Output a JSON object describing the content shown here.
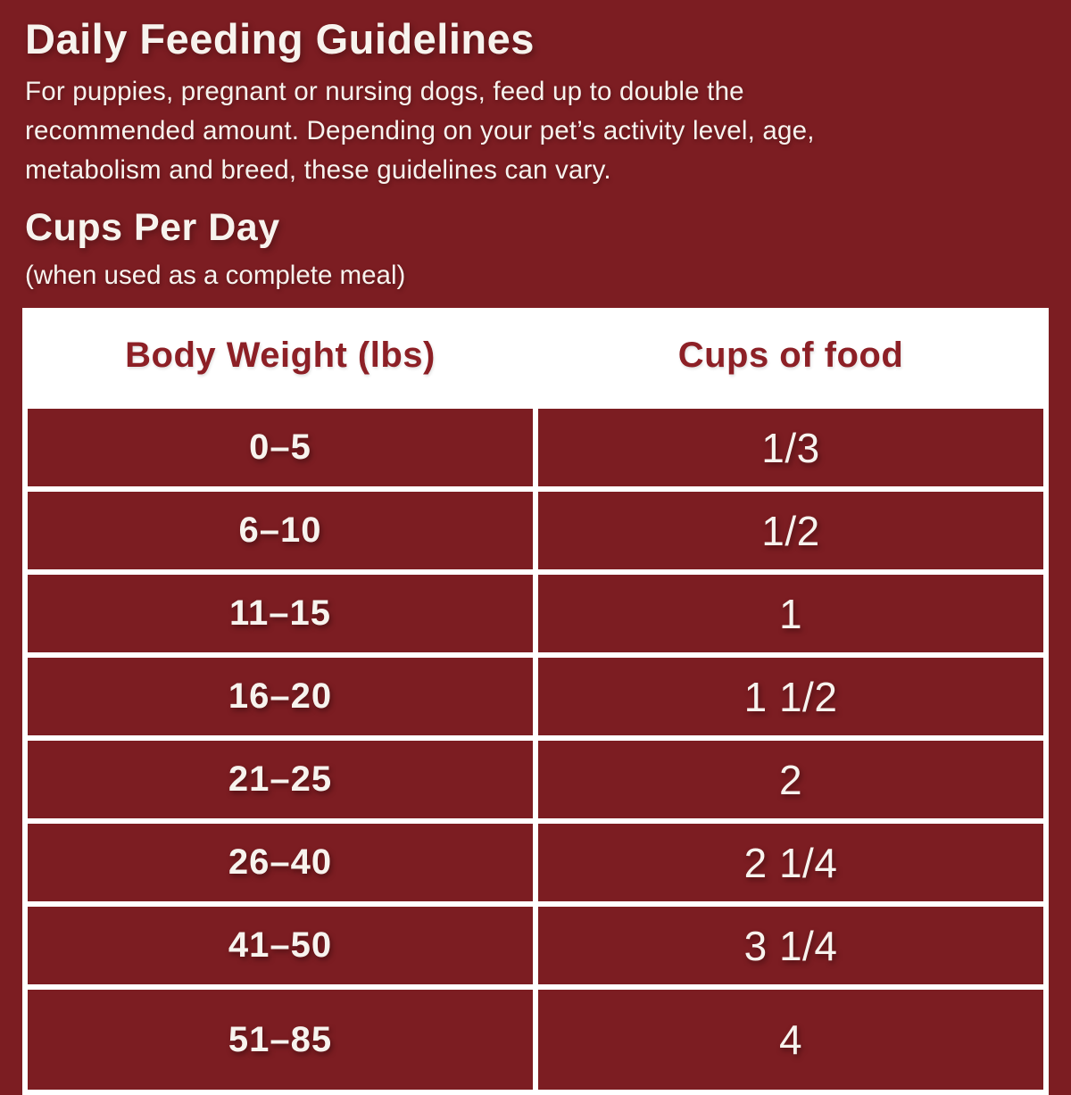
{
  "colors": {
    "background": "#7C1D22",
    "panel": "#FFFFFF",
    "header_text": "#8D2026",
    "body_text": "#F7F3EE"
  },
  "intro": {
    "title": "Daily Feeding Guidelines",
    "description": "For puppies, pregnant or nursing dogs, feed up to double the recommended amount. Depending on your pet’s activity level, age, metabolism and breed, these guidelines can vary.",
    "section_title": "Cups Per Day",
    "section_subtitle": "(when used as a complete meal)"
  },
  "table": {
    "headers": [
      "Body Weight (lbs)",
      "Cups of food"
    ],
    "rows": [
      {
        "weight": "0–5",
        "cups": "1/3"
      },
      {
        "weight": "6–10",
        "cups": "1/2"
      },
      {
        "weight": "11–15",
        "cups": "1"
      },
      {
        "weight": "16–20",
        "cups": "1 1/2"
      },
      {
        "weight": "21–25",
        "cups": "2"
      },
      {
        "weight": "26–40",
        "cups": "2 1/4"
      },
      {
        "weight": "41–50",
        "cups": "3 1/4"
      },
      {
        "weight": "51–85",
        "cups": "4"
      }
    ]
  }
}
